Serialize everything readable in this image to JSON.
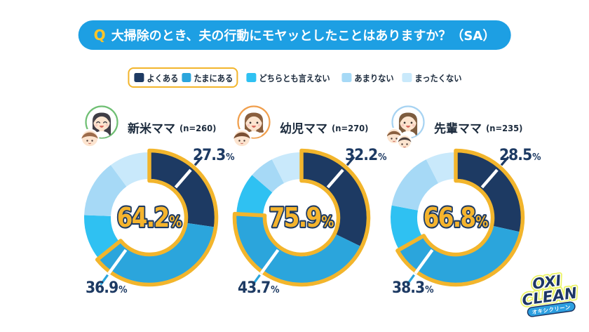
{
  "title": {
    "q": "Q",
    "text": "大掃除のとき、夫の行動にモヤッとしたことはありますか？（SA）"
  },
  "colors": {
    "navy": "#1d3a63",
    "blue": "#2ba5dc",
    "cyan": "#2fc1f2",
    "light": "#a6d9f6",
    "lightest": "#c9e9fb",
    "yellow": "#f2b52c",
    "pill_blue": "#1d9fe3",
    "q_yellow": "#ffc527",
    "center_yellow": "#f5b42d",
    "text_dark": "#1c2b3d"
  },
  "legend": {
    "boxed_items": [
      {
        "label": "よくある",
        "color": "#1d3a63"
      },
      {
        "label": "たまにある",
        "color": "#2ba5dc"
      }
    ],
    "items": [
      {
        "label": "どちらとも言えない",
        "color": "#2fc1f2"
      },
      {
        "label": "あまりない",
        "color": "#a6d9f6"
      },
      {
        "label": "まったくない",
        "color": "#c9e9fb"
      }
    ]
  },
  "chart_data": {
    "type": "donut",
    "categories": [
      "よくある",
      "たまにある",
      "どちらとも言えない",
      "あまりない",
      "まったくない"
    ],
    "segment_colors": [
      "#1d3a63",
      "#2ba5dc",
      "#2fc1f2",
      "#a6d9f6",
      "#c9e9fb"
    ],
    "charts": [
      {
        "name": "新米ママ",
        "n": "(n=260)",
        "total": "64.2",
        "values": [
          27.3,
          36.9,
          11.4,
          14.3,
          10.1
        ],
        "label_top": "27.3",
        "label_bottom": "36.9",
        "avatar": {
          "ring": "#6fbf73",
          "hair": "#3f3d46",
          "long": true,
          "kids": [
            {
              "hair": "#9c6b4a"
            }
          ],
          "eyes": "happy"
        }
      },
      {
        "name": "幼児ママ",
        "n": "(n=270)",
        "total": "75.9",
        "values": [
          32.2,
          43.7,
          10.4,
          6.2,
          7.5
        ],
        "label_top": "32.2",
        "label_bottom": "43.7",
        "avatar": {
          "ring": "#f09f4d",
          "hair": "#8a5f3e",
          "long": false,
          "kids": [
            {
              "hair": "#7a4f33"
            }
          ],
          "eyes": "open"
        }
      },
      {
        "name": "先輩ママ",
        "n": "(n=235)",
        "total": "66.8",
        "values": [
          28.5,
          38.3,
          11.2,
          14.5,
          7.5
        ],
        "label_top": "28.5",
        "label_bottom": "38.3",
        "avatar": {
          "ring": "#a7d3f2",
          "hair": "#7d5c3f",
          "long": true,
          "kids": [
            {
              "hair": "#8a5f3e"
            },
            {
              "hair": "#4a3f3c"
            }
          ],
          "eyes": "open"
        }
      }
    ],
    "highlight_segments": 2,
    "legend_position": "top",
    "unit": "%"
  },
  "logo": {
    "line1": "OXI",
    "line2": "CLEAN",
    "sub": "オキシクリーン"
  }
}
